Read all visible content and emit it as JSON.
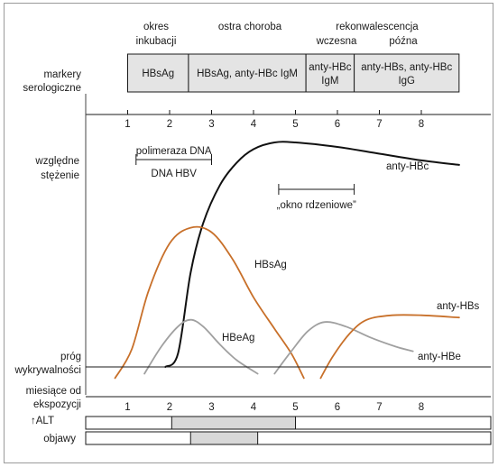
{
  "phases": {
    "incubation": [
      "okres",
      "inkubacji"
    ],
    "acute": "ostra choroba",
    "convalescence": "rekonwalescencja",
    "early": "wczesna",
    "late": "późna"
  },
  "markers": {
    "label": [
      "markery",
      "serologiczne"
    ],
    "boxes": [
      {
        "lines": [
          "HBsAg"
        ],
        "from": 1,
        "to": 2.45
      },
      {
        "lines": [
          "HBsAg, anty-HBc IgM"
        ],
        "from": 2.45,
        "to": 5.25
      },
      {
        "lines": [
          "anty-HBc",
          "IgM"
        ],
        "from": 5.25,
        "to": 6.4
      },
      {
        "lines": [
          "anty-HBs, anty-HBc",
          "IgG"
        ],
        "from": 6.4,
        "to": 8.9
      }
    ]
  },
  "axis_ticks": [
    "1",
    "2",
    "3",
    "4",
    "5",
    "6",
    "7",
    "8"
  ],
  "ylabel": [
    "względne",
    "stężenie"
  ],
  "threshold_label": [
    "próg",
    "wykrywalności"
  ],
  "xlabel": [
    "miesiące od",
    "ekspozycji"
  ],
  "dna": {
    "top": "polimeraza DNA",
    "bottom": "DNA HBV",
    "from": 1.2,
    "to": 3.0
  },
  "window": {
    "label": "„okno rdzeniowe”",
    "from": 4.6,
    "to": 6.4
  },
  "alt": {
    "label": "↑ALT",
    "from": 2.05,
    "to": 5.0
  },
  "symptoms": {
    "label": "objawy",
    "from": 2.5,
    "to": 4.1
  },
  "colors": {
    "hbc": "#111111",
    "orange": "#c8702a",
    "gray": "#a0a0a0",
    "band": "#d8d8d8"
  },
  "chart_data": {
    "type": "line",
    "xlabel": "miesiące od ekspozycji",
    "ylabel": "względne stężenie",
    "x_range": [
      0,
      9
    ],
    "series": [
      {
        "name": "anty-HBc",
        "color": "#111111",
        "points": [
          [
            1.9,
            0
          ],
          [
            2.2,
            0.06
          ],
          [
            2.5,
            0.42
          ],
          [
            2.8,
            0.64
          ],
          [
            3.2,
            0.81
          ],
          [
            3.6,
            0.91
          ],
          [
            4.0,
            0.97
          ],
          [
            4.5,
            1.0
          ],
          [
            5.0,
            1.0
          ],
          [
            6.0,
            0.98
          ],
          [
            7.0,
            0.95
          ],
          [
            8.0,
            0.92
          ],
          [
            8.9,
            0.9
          ]
        ]
      },
      {
        "name": "HBsAg",
        "color": "#c8702a",
        "points": [
          [
            0.7,
            -0.05
          ],
          [
            1.1,
            0.08
          ],
          [
            1.5,
            0.34
          ],
          [
            2.0,
            0.55
          ],
          [
            2.5,
            0.62
          ],
          [
            3.0,
            0.6
          ],
          [
            3.5,
            0.48
          ],
          [
            4.0,
            0.31
          ],
          [
            4.5,
            0.17
          ],
          [
            4.9,
            0.06
          ],
          [
            5.2,
            -0.05
          ]
        ]
      },
      {
        "name": "HBeAg",
        "color": "#a0a0a0",
        "points": [
          [
            1.4,
            -0.03
          ],
          [
            1.8,
            0.09
          ],
          [
            2.2,
            0.18
          ],
          [
            2.5,
            0.21
          ],
          [
            2.8,
            0.18
          ],
          [
            3.2,
            0.1
          ],
          [
            3.6,
            0.03
          ],
          [
            4.1,
            -0.03
          ]
        ]
      },
      {
        "name": "anty-HBe",
        "color": "#a0a0a0",
        "points": [
          [
            4.5,
            -0.03
          ],
          [
            4.9,
            0.07
          ],
          [
            5.3,
            0.16
          ],
          [
            5.7,
            0.2
          ],
          [
            6.2,
            0.18
          ],
          [
            6.8,
            0.13
          ],
          [
            7.4,
            0.09
          ],
          [
            7.8,
            0.07
          ]
        ]
      },
      {
        "name": "anty-HBs",
        "color": "#c8702a",
        "points": [
          [
            5.6,
            -0.05
          ],
          [
            5.9,
            0.05
          ],
          [
            6.3,
            0.15
          ],
          [
            6.7,
            0.21
          ],
          [
            7.3,
            0.23
          ],
          [
            8.0,
            0.23
          ],
          [
            8.9,
            0.22
          ]
        ]
      }
    ]
  }
}
